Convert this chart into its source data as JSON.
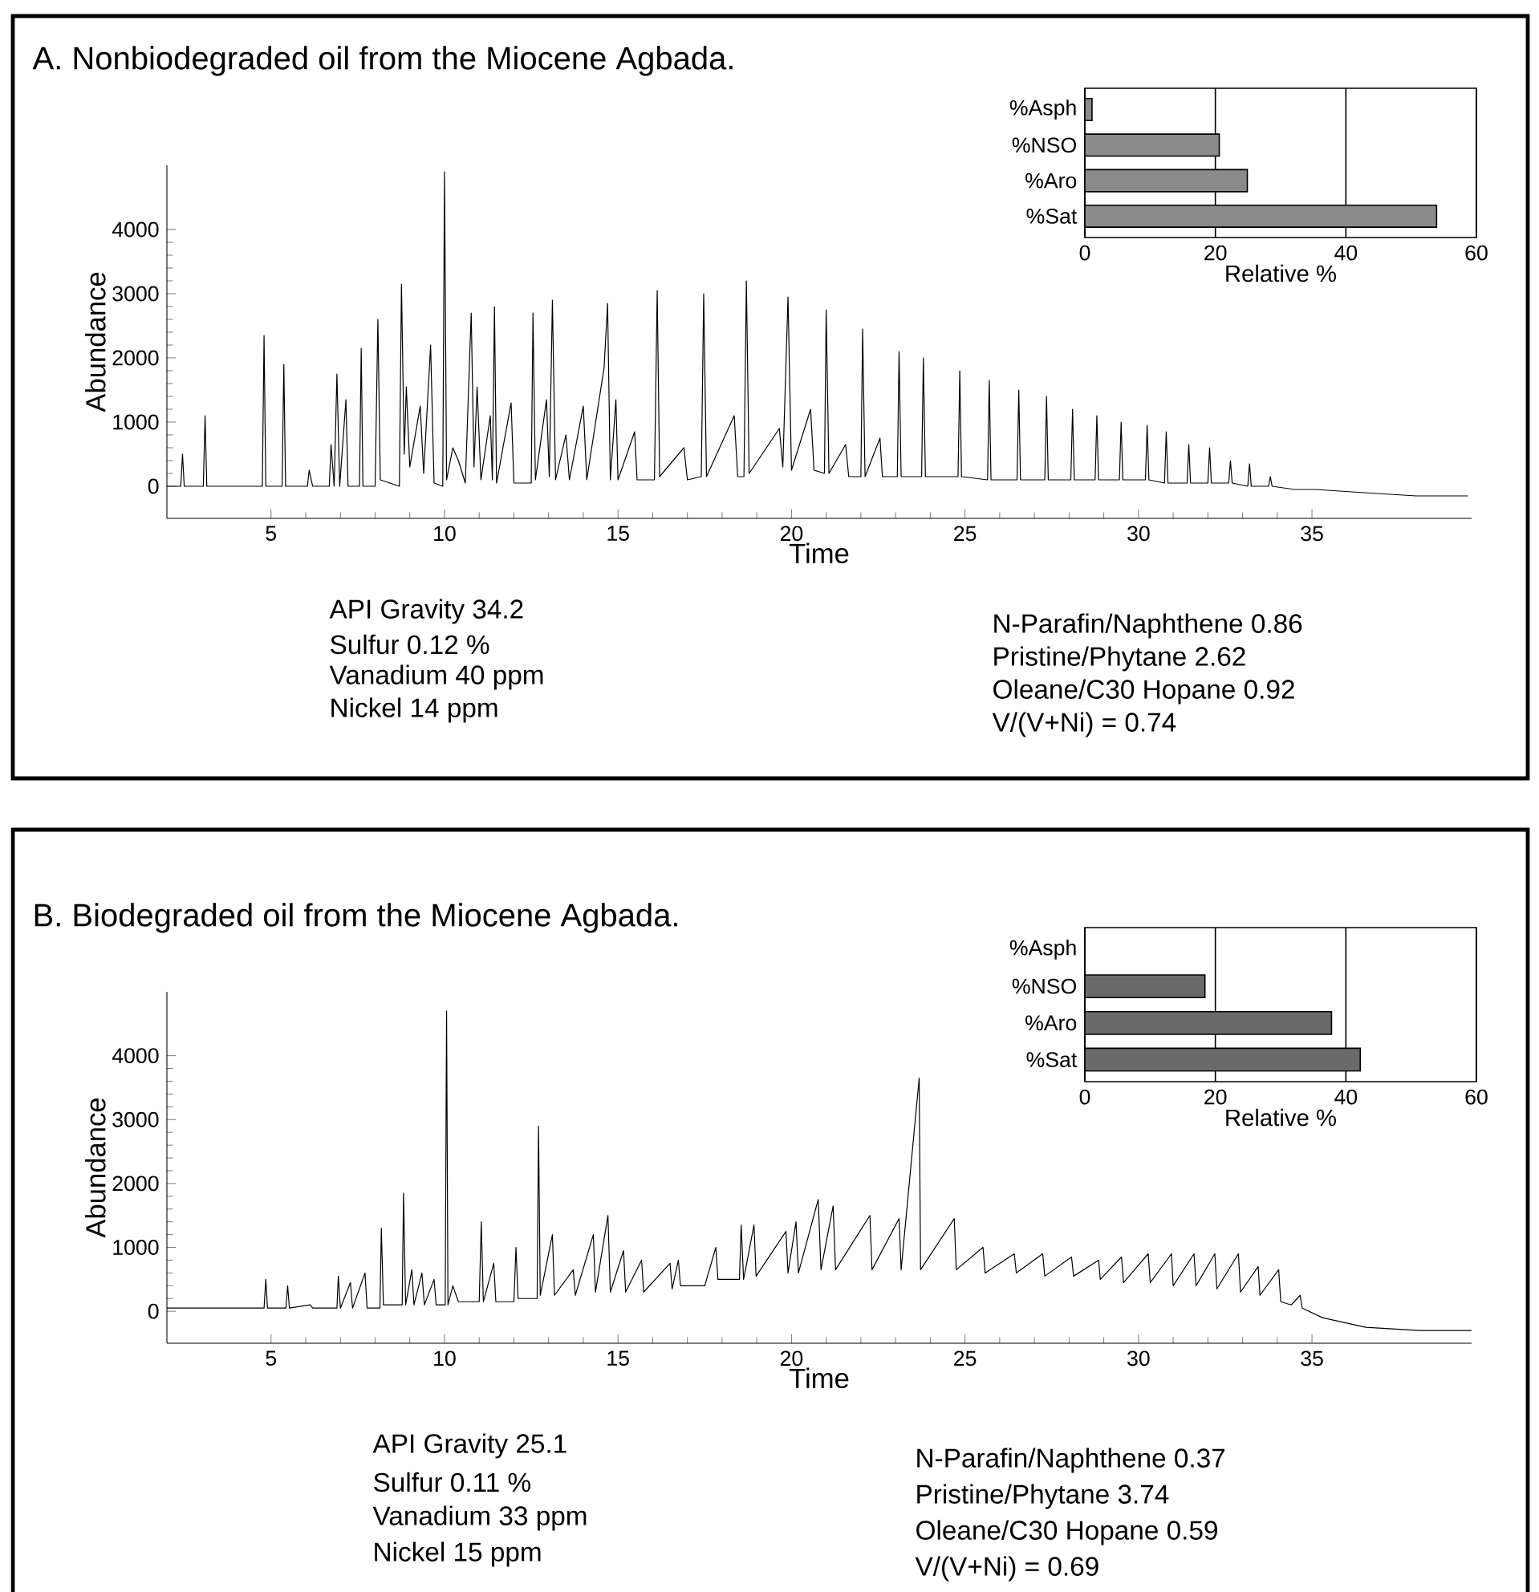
{
  "chart_data": [
    {
      "type": "line",
      "title": "A. Nonbiodegraded oil from the Miocene Agbada.",
      "xlabel": "Time",
      "ylabel": "Abundance",
      "color": "#000000",
      "xlim": [
        2,
        39.6
      ],
      "ylim": [
        -500,
        5000
      ],
      "xticks": [
        5,
        10,
        15,
        20,
        25,
        30,
        35
      ],
      "yticks": [
        0,
        1000,
        2000,
        3000,
        4000
      ],
      "x": [
        2.0,
        2.4,
        2.45,
        2.5,
        3.05,
        3.1,
        3.15,
        4.0,
        4.75,
        4.8,
        4.85,
        5.32,
        5.37,
        5.42,
        6.05,
        6.1,
        6.2,
        6.68,
        6.73,
        6.82,
        6.9,
        6.98,
        7.16,
        7.22,
        7.55,
        7.6,
        7.65,
        8.0,
        8.08,
        8.15,
        8.7,
        8.76,
        8.84,
        8.9,
        9.0,
        9.3,
        9.4,
        9.6,
        9.7,
        9.95,
        10.0,
        10.06,
        10.24,
        10.4,
        10.6,
        10.77,
        10.85,
        10.94,
        11.05,
        11.32,
        11.38,
        11.44,
        11.5,
        11.92,
        12.0,
        12.5,
        12.55,
        12.62,
        12.94,
        13.02,
        13.11,
        13.2,
        13.5,
        13.6,
        14.0,
        14.1,
        14.6,
        14.7,
        14.78,
        14.94,
        15.0,
        15.48,
        15.55,
        16.05,
        16.13,
        16.2,
        16.9,
        17.0,
        17.4,
        17.47,
        17.55,
        18.35,
        18.45,
        18.63,
        18.7,
        18.78,
        19.65,
        19.75,
        19.9,
        20.0,
        20.55,
        20.65,
        20.95,
        21.0,
        21.08,
        21.56,
        21.65,
        22.0,
        22.05,
        22.12,
        22.55,
        22.62,
        23.05,
        23.1,
        23.16,
        23.75,
        23.8,
        23.86,
        24.8,
        24.85,
        24.9,
        25.65,
        25.7,
        25.75,
        26.5,
        26.55,
        26.6,
        27.3,
        27.35,
        27.4,
        28.05,
        28.1,
        28.15,
        28.75,
        28.8,
        28.85,
        29.45,
        29.5,
        29.55,
        30.2,
        30.25,
        30.3,
        30.75,
        30.8,
        30.85,
        31.4,
        31.45,
        31.5,
        32.0,
        32.05,
        32.1,
        32.6,
        32.65,
        32.7,
        33.15,
        33.2,
        33.25,
        33.75,
        33.8,
        33.85,
        34.5,
        35.1,
        36.5,
        38.0,
        39.5
      ],
      "values": [
        0,
        0,
        500,
        0,
        0,
        1100,
        0,
        0,
        0,
        2350,
        0,
        0,
        1900,
        0,
        0,
        250,
        0,
        0,
        650,
        0,
        1750,
        0,
        1350,
        0,
        0,
        2150,
        0,
        0,
        2600,
        100,
        0,
        3150,
        500,
        1550,
        300,
        1250,
        200,
        2200,
        50,
        0,
        4900,
        100,
        600,
        400,
        50,
        2700,
        300,
        1550,
        100,
        1100,
        100,
        2800,
        50,
        1300,
        50,
        50,
        2700,
        100,
        1350,
        150,
        2900,
        100,
        800,
        100,
        1250,
        100,
        1850,
        2850,
        100,
        1350,
        100,
        850,
        100,
        100,
        3050,
        150,
        600,
        100,
        150,
        3000,
        150,
        1100,
        150,
        150,
        3200,
        200,
        900,
        300,
        2950,
        250,
        1200,
        250,
        200,
        2750,
        200,
        650,
        150,
        150,
        2450,
        150,
        750,
        150,
        150,
        2100,
        150,
        150,
        2000,
        150,
        150,
        1800,
        150,
        100,
        1650,
        100,
        100,
        1500,
        100,
        100,
        1400,
        100,
        100,
        1200,
        100,
        100,
        1100,
        100,
        100,
        1000,
        100,
        100,
        950,
        100,
        50,
        850,
        50,
        50,
        650,
        50,
        50,
        600,
        50,
        50,
        400,
        50,
        0,
        350,
        0,
        0,
        150,
        0,
        -50,
        -50,
        -100,
        -150,
        -150
      ],
      "annotations": [
        "API Gravity  34.2",
        "Sulfur  0.12 %",
        "Vanadium  40 ppm",
        "Nickel  14 ppm",
        "N-Parafin/Naphthene  0.86",
        "Pristine/Phytane  2.62",
        "Oleane/C30 Hopane  0.92",
        "V/(V+Ni) = 0.74"
      ]
    },
    {
      "type": "bar",
      "orientation": "horizontal",
      "categories": [
        "%Asph",
        "%NSO",
        "%Aro",
        "%Sat"
      ],
      "values": [
        1.1,
        20.6,
        24.9,
        53.9
      ],
      "color": "#8a8a8a",
      "xlabel": "Relative %",
      "xlim": [
        0,
        60
      ],
      "xticks": [
        0,
        20,
        40,
        60
      ],
      "grid": "x"
    },
    {
      "type": "line",
      "title": "B. Biodegraded oil from the Miocene Agbada.",
      "xlabel": "Time",
      "ylabel": "Abundance",
      "color": "#000000",
      "xlim": [
        2,
        39.6
      ],
      "ylim": [
        -500,
        5000
      ],
      "xticks": [
        5,
        10,
        15,
        20,
        25,
        30,
        35
      ],
      "yticks": [
        0,
        1000,
        2000,
        3000,
        4000
      ],
      "x": [
        2.0,
        3.0,
        4.0,
        4.8,
        4.85,
        4.9,
        5.43,
        5.48,
        5.53,
        6.13,
        6.2,
        6.9,
        6.94,
        7.0,
        7.29,
        7.35,
        7.71,
        7.77,
        8.14,
        8.18,
        8.24,
        8.78,
        8.82,
        8.88,
        9.06,
        9.12,
        9.35,
        9.42,
        9.7,
        9.76,
        10.02,
        10.06,
        10.1,
        10.24,
        10.4,
        11.0,
        11.06,
        11.12,
        11.42,
        11.48,
        12.0,
        12.06,
        12.12,
        12.67,
        12.71,
        12.76,
        13.11,
        13.17,
        13.71,
        13.77,
        14.29,
        14.35,
        14.71,
        14.78,
        15.16,
        15.22,
        15.68,
        15.74,
        16.5,
        16.56,
        16.74,
        16.8,
        17.5,
        17.82,
        17.88,
        18.5,
        18.55,
        18.62,
        18.92,
        18.98,
        19.84,
        19.9,
        20.13,
        20.2,
        20.77,
        20.85,
        21.2,
        21.27,
        22.26,
        22.32,
        23.1,
        23.16,
        23.68,
        23.72,
        24.69,
        24.75,
        25.52,
        25.58,
        26.42,
        26.48,
        27.24,
        27.3,
        28.07,
        28.13,
        28.85,
        28.9,
        29.51,
        29.57,
        30.28,
        30.34,
        30.95,
        31.0,
        31.6,
        31.66,
        32.2,
        32.26,
        32.88,
        32.94,
        33.45,
        33.5,
        34.04,
        34.1,
        34.4,
        34.66,
        34.72,
        35.3,
        36.55,
        38.1,
        39.6
      ],
      "values": [
        50,
        50,
        50,
        50,
        500,
        50,
        50,
        400,
        50,
        100,
        50,
        50,
        550,
        50,
        450,
        50,
        600,
        50,
        50,
        1300,
        100,
        100,
        1850,
        100,
        650,
        100,
        600,
        100,
        500,
        100,
        100,
        4700,
        100,
        400,
        150,
        150,
        1400,
        150,
        750,
        150,
        150,
        1000,
        200,
        200,
        2900,
        250,
        1200,
        250,
        650,
        250,
        1200,
        300,
        1500,
        300,
        950,
        300,
        800,
        300,
        750,
        350,
        800,
        400,
        400,
        1000,
        500,
        500,
        1350,
        500,
        1350,
        550,
        1250,
        600,
        1400,
        600,
        1750,
        650,
        1650,
        650,
        1500,
        650,
        1450,
        650,
        3650,
        650,
        1450,
        650,
        1000,
        600,
        900,
        600,
        900,
        550,
        850,
        550,
        800,
        500,
        850,
        450,
        900,
        450,
        900,
        400,
        900,
        400,
        900,
        350,
        900,
        300,
        700,
        250,
        650,
        150,
        100,
        250,
        50,
        -100,
        -250,
        -300,
        -300
      ],
      "annotations": [
        "API Gravity  25.1",
        "Sulfur  0.11 %",
        "Vanadium  33 ppm",
        "Nickel  15 ppm",
        "N-Parafin/Naphthene  0.37",
        "Pristine/Phytane  3.74",
        "Oleane/C30 Hopane  0.59",
        "V/(V+Ni) = 0.69"
      ]
    },
    {
      "type": "bar",
      "orientation": "horizontal",
      "categories": [
        "%Asph",
        "%NSO",
        "%Aro",
        "%Sat"
      ],
      "values": [
        0,
        18.4,
        37.8,
        42.2
      ],
      "color": "#6a6a6a",
      "xlabel": "Relative %",
      "xlim": [
        0,
        60
      ],
      "xticks": [
        0,
        20,
        40,
        60
      ],
      "grid": "x"
    }
  ]
}
